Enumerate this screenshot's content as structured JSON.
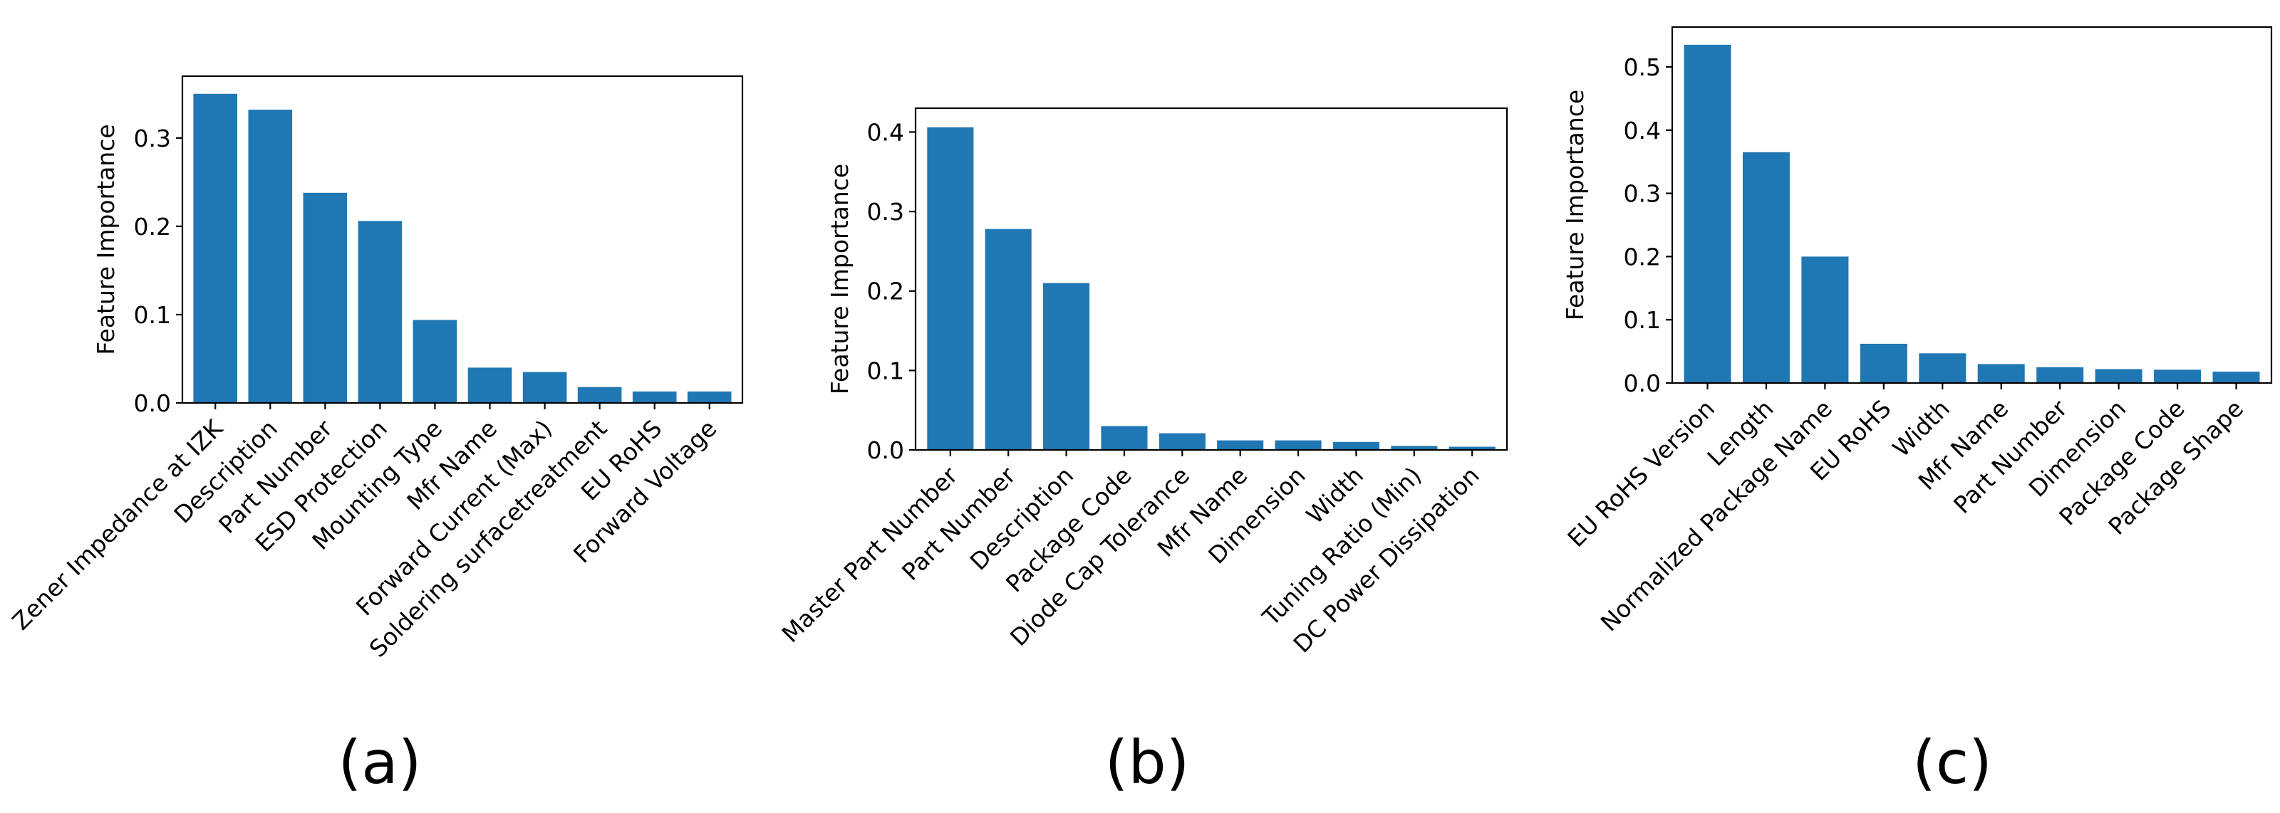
{
  "chart_data": [
    {
      "type": "bar",
      "panel": "(a)",
      "title": "",
      "xlabel": "",
      "ylabel": "Feature Importance",
      "ylim": [
        0,
        0.37
      ],
      "yticks": [
        "0.0",
        "0.1",
        "0.2",
        "0.3"
      ],
      "bar_color": "#1f77b4",
      "categories": [
        "Zener Impedance at IZK",
        "Description",
        "Part Number",
        "ESD Protection",
        "Mounting Type",
        "Mfr Name",
        "Forward Current (Max)",
        "Soldering surfacetreatment",
        "EU RoHS",
        "Forward Voltage"
      ],
      "values": [
        0.35,
        0.332,
        0.238,
        0.206,
        0.094,
        0.04,
        0.035,
        0.018,
        0.013,
        0.013
      ]
    },
    {
      "type": "bar",
      "panel": "(b)",
      "title": "",
      "xlabel": "",
      "ylabel": "Feature Importance",
      "ylim": [
        0,
        0.43
      ],
      "yticks": [
        "0.0",
        "0.1",
        "0.2",
        "0.3",
        "0.4"
      ],
      "bar_color": "#1f77b4",
      "categories": [
        "Master Part Number",
        "Part Number",
        "Description",
        "Package Code",
        "Diode Cap Tolerance",
        "Mfr Name",
        "Dimension",
        "Width",
        "Tuning Ratio (Min)",
        "DC Power Dissipation"
      ],
      "values": [
        0.406,
        0.278,
        0.21,
        0.03,
        0.021,
        0.012,
        0.012,
        0.01,
        0.005,
        0.004
      ]
    },
    {
      "type": "bar",
      "panel": "(c)",
      "title": "",
      "xlabel": "",
      "ylabel": "Feature Importance",
      "ylim": [
        0,
        0.563
      ],
      "yticks": [
        "0.0",
        "0.1",
        "0.2",
        "0.3",
        "0.4",
        "0.5"
      ],
      "bar_color": "#1f77b4",
      "categories": [
        "EU RoHS Version",
        "Length",
        "Normalized Package Name",
        "EU RoHS",
        "Width",
        "Mfr Name",
        "Part Number",
        "Dimension",
        "Package Code",
        "Package Shape"
      ],
      "values": [
        0.535,
        0.365,
        0.2,
        0.062,
        0.047,
        0.03,
        0.025,
        0.022,
        0.021,
        0.018
      ]
    }
  ]
}
